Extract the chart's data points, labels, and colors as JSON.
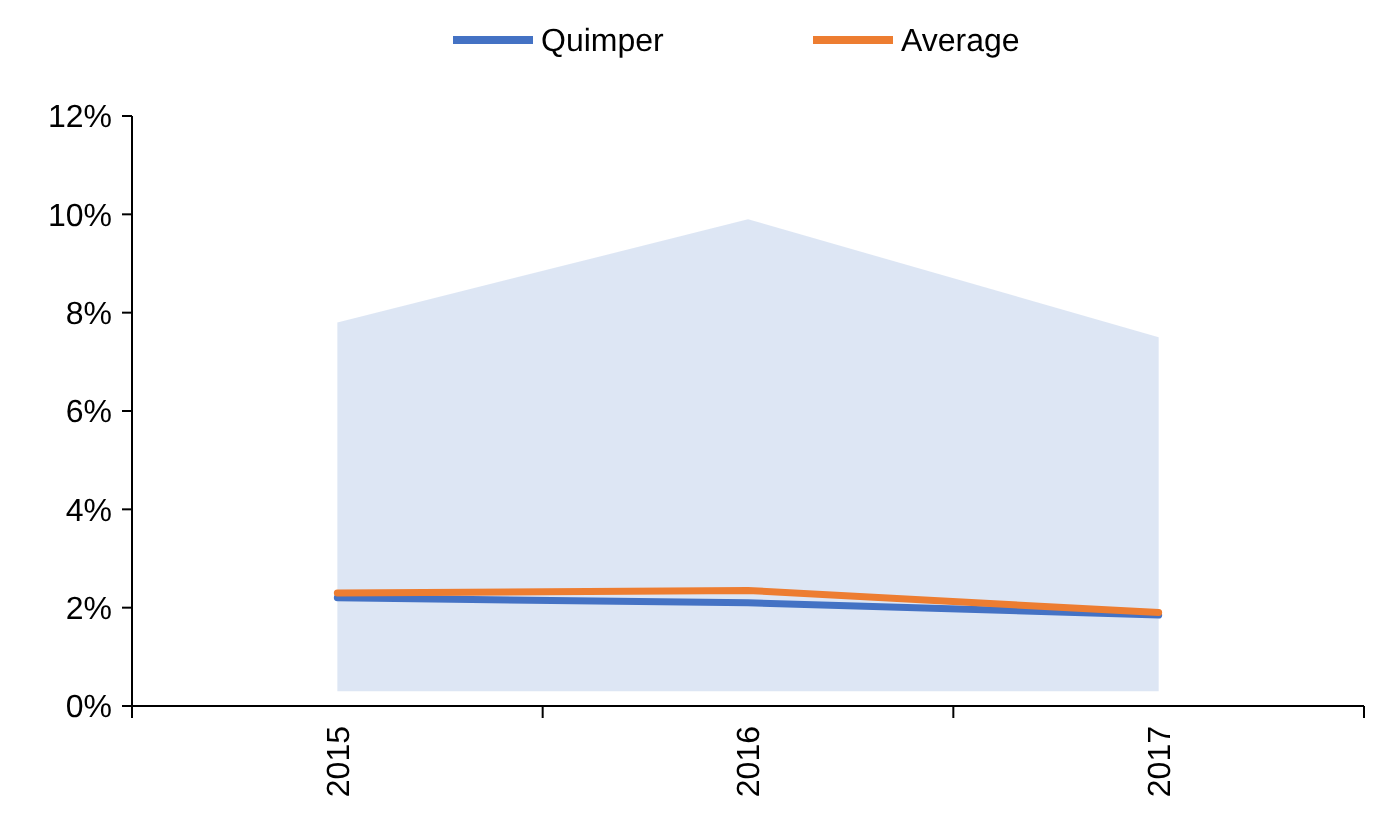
{
  "chart_data": {
    "type": "line",
    "categories": [
      "2015",
      "2016",
      "2017"
    ],
    "series": [
      {
        "name": "Quimper",
        "color": "#4472c4",
        "values": [
          2.2,
          2.1,
          1.85
        ],
        "lower": [
          0.3,
          0.3,
          0.3
        ],
        "upper": [
          7.8,
          9.9,
          7.5
        ]
      },
      {
        "name": "Average",
        "color": "#ed7d31",
        "values": [
          2.3,
          2.35,
          1.9
        ]
      }
    ],
    "ylim": [
      0,
      12
    ],
    "yticks": [
      {
        "value": 0,
        "label": "0%"
      },
      {
        "value": 2,
        "label": "2%"
      },
      {
        "value": 4,
        "label": "4%"
      },
      {
        "value": 6,
        "label": "6%"
      },
      {
        "value": 8,
        "label": "8%"
      },
      {
        "value": 10,
        "label": "10%"
      },
      {
        "value": 12,
        "label": "12%"
      }
    ],
    "grid": false,
    "legend": "top",
    "marker": "none",
    "line_style": "solid"
  }
}
